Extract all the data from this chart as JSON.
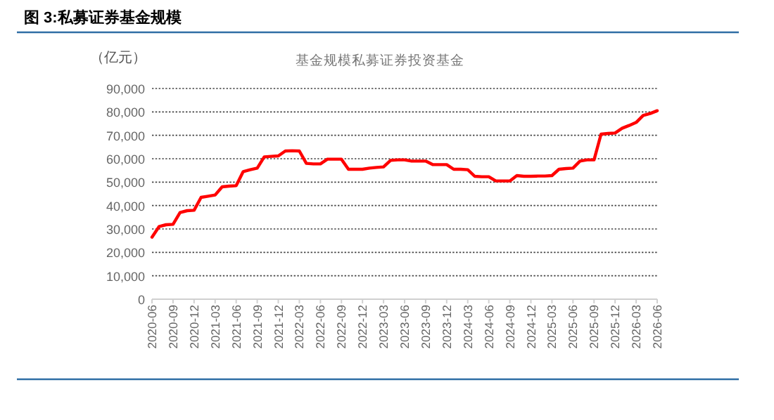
{
  "chart_data": {
    "type": "line",
    "title": "图 3:私募证券基金规模",
    "subtitle": "基金规模私募证券投资基金",
    "ylabel": "（亿元）",
    "x": [
      "2020-06",
      "2020-07",
      "2020-08",
      "2020-09",
      "2020-10",
      "2020-11",
      "2020-12",
      "2021-01",
      "2021-02",
      "2021-03",
      "2021-04",
      "2021-05",
      "2021-06",
      "2021-07",
      "2021-08",
      "2021-09",
      "2021-10",
      "2021-11",
      "2021-12",
      "2022-01",
      "2022-02",
      "2022-03",
      "2022-04",
      "2022-05",
      "2022-06",
      "2022-07",
      "2022-08",
      "2022-09",
      "2022-10",
      "2022-11",
      "2022-12",
      "2023-01",
      "2023-02",
      "2023-03",
      "2023-04",
      "2023-05",
      "2023-06",
      "2023-07",
      "2023-08",
      "2023-09",
      "2023-10",
      "2023-11",
      "2023-12",
      "2024-01",
      "2024-02",
      "2024-03",
      "2024-04",
      "2024-05",
      "2024-06",
      "2024-07",
      "2024-08",
      "2024-09",
      "2024-10",
      "2024-11",
      "2024-12",
      "2025-01",
      "2025-02",
      "2025-03",
      "2025-04",
      "2025-05",
      "2025-06",
      "2025-07",
      "2025-08",
      "2025-09",
      "2025-10",
      "2025-11",
      "2025-12",
      "2026-01",
      "2026-02",
      "2026-03",
      "2026-04",
      "2026-05",
      "2026-06"
    ],
    "series": [
      {
        "color": "#ff0000",
        "values": [
          26500,
          31000,
          31800,
          32000,
          37000,
          37800,
          38000,
          43500,
          44000,
          44500,
          48000,
          48300,
          48500,
          54500,
          55300,
          56000,
          60800,
          61000,
          61200,
          63300,
          63400,
          63300,
          58000,
          57800,
          57800,
          59800,
          59800,
          59800,
          55500,
          55500,
          55500,
          56000,
          56300,
          56500,
          59300,
          59500,
          59500,
          59000,
          59000,
          59000,
          57500,
          57500,
          57500,
          55500,
          55500,
          55300,
          52500,
          52300,
          52300,
          50500,
          50500,
          50500,
          52800,
          52500,
          52500,
          52600,
          52600,
          52800,
          55500,
          55800,
          56000,
          59000,
          59500,
          59500,
          70500,
          70800,
          71000,
          73000,
          74200,
          75500,
          78500,
          79300,
          80500
        ]
      }
    ],
    "xlim": [
      "2020-06",
      "2026-06"
    ],
    "xticks": [
      "2020-06",
      "2020-09",
      "2020-12",
      "2021-03",
      "2021-06",
      "2021-09",
      "2021-12",
      "2022-03",
      "2022-06",
      "2022-09",
      "2022-12",
      "2023-03",
      "2023-06",
      "2023-09",
      "2023-12",
      "2024-03",
      "2024-06",
      "2024-09",
      "2024-12",
      "2025-03",
      "2025-06",
      "2025-09",
      "2025-12",
      "2026-03",
      "2026-06"
    ],
    "ylim": [
      0,
      90000
    ],
    "yticks": [
      {
        "value": 0,
        "label": "0"
      },
      {
        "value": 10000,
        "label": "10,000"
      },
      {
        "value": 20000,
        "label": "20,000"
      },
      {
        "value": 30000,
        "label": "30,000"
      },
      {
        "value": 40000,
        "label": "40,000"
      },
      {
        "value": 50000,
        "label": "50,000"
      },
      {
        "value": 60000,
        "label": "60,000"
      },
      {
        "value": 70000,
        "label": "70,000"
      },
      {
        "value": 80000,
        "label": "80,000"
      },
      {
        "value": 90000,
        "label": "90,000"
      }
    ],
    "grid": "y",
    "marker": "none",
    "line_style": "solid"
  }
}
